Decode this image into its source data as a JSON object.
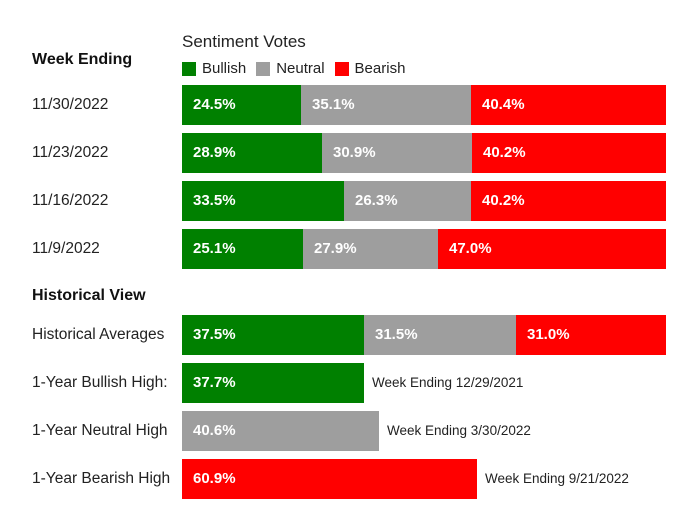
{
  "colors": {
    "bullish": "#008000",
    "neutral": "#9e9e9e",
    "bearish": "#ff0000"
  },
  "header": {
    "week_ending_label": "Week Ending",
    "legend_title": "Sentiment Votes",
    "legend": [
      {
        "name": "Bullish",
        "color": "#008000"
      },
      {
        "name": "Neutral",
        "color": "#9e9e9e"
      },
      {
        "name": "Bearish",
        "color": "#ff0000"
      }
    ]
  },
  "historical_view_label": "Historical View",
  "chart_data": [
    {
      "type": "bar",
      "stacked": true,
      "orientation": "horizontal",
      "title": "Sentiment Votes",
      "categories": [
        "11/30/2022",
        "11/23/2022",
        "11/16/2022",
        "11/9/2022"
      ],
      "series": [
        {
          "name": "Bullish",
          "values": [
            24.5,
            28.9,
            33.5,
            25.1
          ],
          "labels": [
            "24.5%",
            "28.9%",
            "33.5%",
            "25.1%"
          ]
        },
        {
          "name": "Neutral",
          "values": [
            35.1,
            30.9,
            26.3,
            27.9
          ],
          "labels": [
            "35.1%",
            "30.9%",
            "26.3%",
            "27.9%"
          ]
        },
        {
          "name": "Bearish",
          "values": [
            40.4,
            40.2,
            40.2,
            47.0
          ],
          "labels": [
            "40.4%",
            "40.2%",
            "40.2%",
            "47.0%"
          ]
        }
      ]
    },
    {
      "type": "bar",
      "stacked": true,
      "orientation": "horizontal",
      "categories": [
        "Historical Averages"
      ],
      "series": [
        {
          "name": "Bullish",
          "values": [
            37.5
          ],
          "labels": [
            "37.5%"
          ]
        },
        {
          "name": "Neutral",
          "values": [
            31.5
          ],
          "labels": [
            "31.5%"
          ]
        },
        {
          "name": "Bearish",
          "values": [
            31.0
          ],
          "labels": [
            "31.0%"
          ]
        }
      ]
    },
    {
      "type": "bar",
      "orientation": "horizontal",
      "categories": [
        "1-Year Bullish High:",
        "1-Year Neutral High",
        "1-Year Bearish High"
      ],
      "series": [
        {
          "values": [
            37.7,
            40.6,
            60.9
          ],
          "labels": [
            "37.7%",
            "40.6%",
            "60.9%"
          ],
          "colors": [
            "#008000",
            "#9e9e9e",
            "#ff0000"
          ]
        }
      ],
      "annotations": [
        "Week Ending 12/29/2021",
        "Week Ending 3/30/2022",
        "Week Ending 9/21/2022"
      ]
    }
  ]
}
